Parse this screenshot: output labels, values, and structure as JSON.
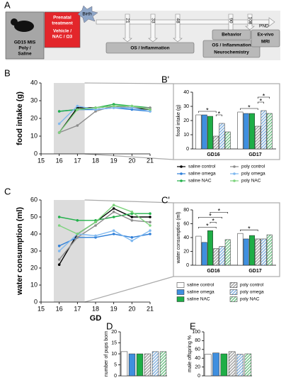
{
  "timeline": {
    "label": "A",
    "mouse": [
      "GD15 MIS",
      "Poly /",
      "Saline"
    ],
    "treatment": [
      "Prenatal",
      "treatment",
      "Vehicle /",
      "NAC / Ω3"
    ],
    "birth": "Birth",
    "days": [
      "21",
      "33",
      "48",
      "90",
      "108"
    ],
    "axis_label": "PND",
    "boxes": [
      [
        "OS / Inflammation"
      ],
      [
        "OS / Inflammation",
        "Neurochemistry"
      ],
      [
        "Behavior"
      ],
      [
        "Ex-vivo",
        "MRI"
      ]
    ]
  },
  "chart_data": [
    {
      "type": "line",
      "label": "B",
      "ylabel": "food intake (g)",
      "x": [
        16,
        17,
        18,
        19,
        20,
        21
      ],
      "xlim": [
        15,
        21
      ],
      "xticks": [
        15,
        16,
        17,
        18,
        19,
        20,
        21
      ],
      "ylim": [
        0,
        40
      ],
      "yticks": [
        0,
        10,
        20,
        30,
        40
      ],
      "highlight_x": [
        15.7,
        17.4
      ],
      "legend": "below-right",
      "series": [
        {
          "name": "saline control",
          "color": "#000000",
          "values": [
            12,
            26,
            26,
            27,
            26,
            25
          ]
        },
        {
          "name": "saline omega",
          "color": "#2f7fd8",
          "values": [
            24,
            25,
            25,
            26,
            25,
            24
          ]
        },
        {
          "name": "saline NAC",
          "color": "#22b04a",
          "values": [
            24,
            25,
            26,
            28,
            27,
            26
          ]
        },
        {
          "name": "poly control",
          "color": "#8c8c8c",
          "values": [
            12,
            16,
            24,
            27,
            26,
            26
          ]
        },
        {
          "name": "poly omega",
          "color": "#7fb8ef",
          "values": [
            17,
            27,
            25,
            26,
            26,
            24
          ]
        },
        {
          "name": "poly NAC",
          "color": "#7dd37d",
          "values": [
            12,
            25,
            26,
            27,
            27,
            25
          ]
        }
      ]
    },
    {
      "type": "bar",
      "label": "B'",
      "ylabel": "food intake (g)",
      "categories": [
        "GD16",
        "GD17"
      ],
      "ylim": [
        0,
        40
      ],
      "yticks": [
        0,
        10,
        20,
        30,
        40
      ],
      "series": [
        {
          "color": "#ffffff",
          "values": [
            24,
            26
          ]
        },
        {
          "color": "#3f8fdf",
          "values": [
            24,
            25
          ]
        },
        {
          "color": "#1fae47",
          "values": [
            23,
            25
          ]
        },
        {
          "color": "#777777",
          "pattern": "hatch",
          "values": [
            9,
            16
          ]
        },
        {
          "color": "#3f8fdf",
          "pattern": "hatch",
          "values": [
            18,
            27
          ]
        },
        {
          "color": "#1fae47",
          "pattern": "hatch",
          "values": [
            12,
            25
          ]
        }
      ],
      "significance": [
        {
          "label": "*",
          "category": 0,
          "bars": [
            0,
            3
          ]
        },
        {
          "label": "*",
          "category": 0,
          "bars": [
            3,
            4
          ]
        },
        {
          "label": "*",
          "category": 1,
          "bars": [
            0,
            3
          ]
        },
        {
          "label": "*",
          "category": 1,
          "bars": [
            3,
            4
          ]
        },
        {
          "label": "*",
          "category": 1,
          "bars": [
            3,
            5
          ]
        }
      ]
    },
    {
      "type": "line",
      "label": "C",
      "ylabel": "water consumption (ml)",
      "xlabel": "GD",
      "x": [
        16,
        17,
        18,
        19,
        20,
        21
      ],
      "xlim": [
        15,
        21
      ],
      "xticks": [
        15,
        16,
        17,
        18,
        19,
        20,
        21
      ],
      "ylim": [
        0,
        60
      ],
      "yticks": [
        0,
        10,
        20,
        30,
        40,
        50,
        60
      ],
      "highlight_x": [
        15.7,
        17.4
      ],
      "series": [
        {
          "color": "#000000",
          "values": [
            22,
            40,
            47,
            55,
            50,
            50
          ]
        },
        {
          "color": "#2f7fd8",
          "values": [
            33,
            38,
            38,
            40,
            38,
            40
          ]
        },
        {
          "color": "#22b04a",
          "values": [
            50,
            48,
            48,
            50,
            52,
            52
          ]
        },
        {
          "color": "#8c8c8c",
          "values": [
            25,
            38,
            45,
            53,
            48,
            47
          ]
        },
        {
          "color": "#7fb8ef",
          "values": [
            30,
            40,
            39,
            42,
            36,
            42
          ]
        },
        {
          "color": "#7dd37d",
          "values": [
            45,
            40,
            47,
            57,
            53,
            45
          ]
        }
      ]
    },
    {
      "type": "bar",
      "label": "C'",
      "ylabel": "water consumption (ml)",
      "categories": [
        "GD16",
        "GD17"
      ],
      "ylim": [
        0,
        80
      ],
      "yticks": [
        0,
        20,
        40,
        60,
        80
      ],
      "legend": "below",
      "series": [
        {
          "name": "saline control",
          "color": "#ffffff",
          "values": [
            42,
            46
          ]
        },
        {
          "name": "saline omega",
          "color": "#3f8fdf",
          "values": [
            33,
            38
          ]
        },
        {
          "name": "saline NAC",
          "color": "#1fae47",
          "values": [
            50,
            43
          ]
        },
        {
          "name": "poly control",
          "color": "#777777",
          "pattern": "hatch",
          "values": [
            24,
            38
          ]
        },
        {
          "name": "poly omega",
          "color": "#3f8fdf",
          "pattern": "hatch",
          "values": [
            27,
            38
          ]
        },
        {
          "name": "poly NAC",
          "color": "#1fae47",
          "pattern": "hatch",
          "values": [
            37,
            44
          ]
        }
      ],
      "significance": [
        {
          "label": "*",
          "category": 0,
          "bars": [
            0,
            3
          ]
        },
        {
          "label": "*",
          "category": 0,
          "bars": [
            2,
            3
          ]
        },
        {
          "label": "*",
          "category": 0,
          "bars": [
            0,
            4
          ]
        },
        {
          "label": "*",
          "category": 0,
          "bars": [
            2,
            5
          ]
        },
        {
          "label": "*",
          "category": 1,
          "bars": [
            0,
            3
          ]
        }
      ]
    },
    {
      "type": "bar",
      "label": "D",
      "ylabel": "number of pups born",
      "ylim": [
        0,
        20
      ],
      "yticks": [
        0,
        5,
        10,
        15,
        20
      ],
      "values": [
        11,
        10,
        10,
        10,
        11,
        11
      ],
      "colors": [
        "#ffffff",
        "#3f8fdf",
        "#1fae47",
        "#777777",
        "#3f8fdf",
        "#1fae47"
      ],
      "patterns": [
        "solid",
        "solid",
        "solid",
        "hatch",
        "hatch",
        "hatch"
      ]
    },
    {
      "type": "bar",
      "label": "E",
      "ylabel": "male offspring %",
      "ylim": [
        0,
        100
      ],
      "yticks": [
        0,
        20,
        40,
        60,
        80,
        100
      ],
      "values": [
        49,
        52,
        50,
        55,
        49,
        50
      ],
      "colors": [
        "#ffffff",
        "#3f8fdf",
        "#1fae47",
        "#777777",
        "#3f8fdf",
        "#1fae47"
      ],
      "patterns": [
        "solid",
        "solid",
        "solid",
        "hatch",
        "hatch",
        "hatch"
      ]
    }
  ]
}
